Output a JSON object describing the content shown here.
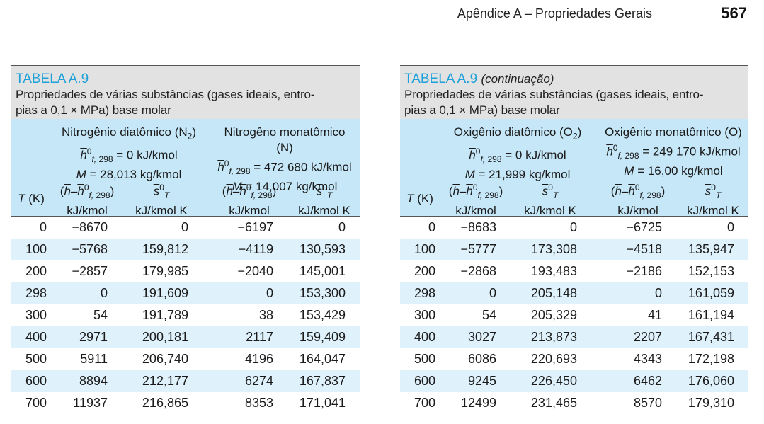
{
  "header": {
    "running_head": "Apêndice A – Propriedades Gerais",
    "page_number": "567"
  },
  "left": {
    "label": "TABELA A.9",
    "continuation": "",
    "desc_line1": "Propriedades de várias substâncias (gases ideais, entro-",
    "desc_line2": "pias a 0,1 × MPa) base molar",
    "g1_name": "Nitrogênio diatômico (N",
    "g1_sub": "2",
    "g1_h": "= 0 kJ/kmol",
    "g1_m": "= 28,013 kg/kmol",
    "g2_name": "Nitrogêno monatômico (N)",
    "g2_h": "= 472 680 kJ/kmol",
    "g2_m": "= 14,007 kg/kmol",
    "rows": [
      [
        "0",
        "−8670",
        "0",
        "−6197",
        "0"
      ],
      [
        "100",
        "−5768",
        "159,812",
        "−4119",
        "130,593"
      ],
      [
        "200",
        "−2857",
        "179,985",
        "−2040",
        "145,001"
      ],
      [
        "298",
        "0",
        "191,609",
        "0",
        "153,300"
      ],
      [
        "300",
        "54",
        "191,789",
        "38",
        "153,429"
      ],
      [
        "400",
        "2971",
        "200,181",
        "2117",
        "159,409"
      ],
      [
        "500",
        "5911",
        "206,740",
        "4196",
        "164,047"
      ],
      [
        "600",
        "8894",
        "212,177",
        "6274",
        "167,837"
      ],
      [
        "700",
        "11937",
        "216,865",
        "8353",
        "171,041"
      ]
    ]
  },
  "right": {
    "label": "TABELA A.9",
    "continuation": "(continuação)",
    "desc_line1": "Propriedades de várias substâncias (gases ideais, entro-",
    "desc_line2": "pias a 0,1 × MPa) base molar",
    "g1_name": "Oxigênio diatômico (O",
    "g1_sub": "2",
    "g1_h": "= 0 kJ/kmol",
    "g1_m": "= 21,999 kg/kmol",
    "g2_name": "Oxigênio monatômico (O)",
    "g2_h": "= 249 170 kJ/kmol",
    "g2_m": "= 16,00 kg/kmol",
    "rows": [
      [
        "0",
        "−8683",
        "0",
        "−6725",
        "0"
      ],
      [
        "100",
        "−5777",
        "173,308",
        "−4518",
        "135,947"
      ],
      [
        "200",
        "−2868",
        "193,483",
        "−2186",
        "152,153"
      ],
      [
        "298",
        "0",
        "205,148",
        "0",
        "161,059"
      ],
      [
        "300",
        "54",
        "205,329",
        "41",
        "161,194"
      ],
      [
        "400",
        "3027",
        "213,873",
        "2207",
        "167,431"
      ],
      [
        "500",
        "6086",
        "220,693",
        "4343",
        "172,198"
      ],
      [
        "600",
        "9245",
        "226,450",
        "6462",
        "176,060"
      ],
      [
        "700",
        "12499",
        "231,465",
        "8570",
        "179,310"
      ]
    ]
  },
  "columns": {
    "t_label": "T",
    "t_unit": "(K)",
    "unit_h": "kJ/kmol",
    "unit_s": "kJ/kmol K"
  }
}
